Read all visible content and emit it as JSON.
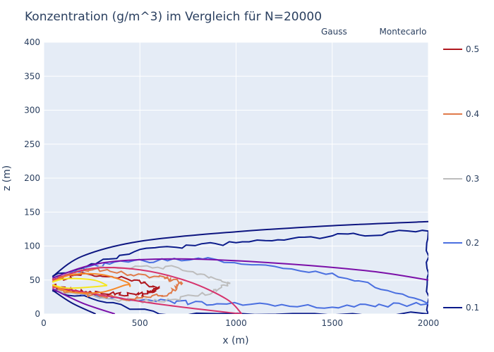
{
  "chart_data": {
    "type": "contour",
    "title": "Konzentration (g/m^3) im Vergleich für N=20000",
    "xlabel": "x (m)",
    "ylabel": "z (m)",
    "xlim": [
      0,
      2000
    ],
    "ylim": [
      0,
      400
    ],
    "xticks": [
      0,
      500,
      1000,
      1500,
      2000
    ],
    "yticks": [
      0,
      50,
      100,
      150,
      200,
      250,
      300,
      350,
      400
    ],
    "grid": true,
    "legend": {
      "placement": "top-right",
      "entries": [
        {
          "name": "Gauss",
          "colors": [
            "#5a2ca0",
            "#c1115a",
            "#f5e61e"
          ]
        },
        {
          "name": "Montecarlo",
          "colors": [
            "#3a56d8",
            "#8f8fb0",
            "#d03020"
          ]
        }
      ]
    },
    "levels": [
      {
        "value": "0.5",
        "color": "#b0171e"
      },
      {
        "value": "0.4",
        "color": "#e07b4a"
      },
      {
        "value": "0.3",
        "color": "#bdbdbd"
      },
      {
        "value": "0.2",
        "color": "#4a6fe0"
      },
      {
        "value": "0.1",
        "color": "#0a1a8a"
      }
    ],
    "series": [
      {
        "name": "Gauss",
        "level": 0.1,
        "color": "#0d1580",
        "source_z": 45,
        "outline": [
          [
            45,
            55
          ],
          [
            200,
            85
          ],
          [
            500,
            107
          ],
          [
            1000,
            121
          ],
          [
            1500,
            130
          ],
          [
            2000,
            136
          ]
        ],
        "floor_x": 270
      },
      {
        "name": "Gauss",
        "level": 0.2,
        "color": "#7b0fa8",
        "source_z": 45,
        "outline": [
          [
            45,
            53
          ],
          [
            300,
            75
          ],
          [
            700,
            81
          ],
          [
            1200,
            75
          ],
          [
            1700,
            63
          ],
          [
            2000,
            50
          ]
        ],
        "floor_x": 370
      },
      {
        "name": "Gauss",
        "level": 0.3,
        "color": "#d6336c",
        "source_z": 45,
        "outline": [
          [
            45,
            50
          ],
          [
            250,
            67
          ],
          [
            500,
            65
          ],
          [
            750,
            48
          ],
          [
            950,
            22
          ],
          [
            1030,
            0
          ]
        ],
        "floor_x": 1030
      },
      {
        "name": "Gauss",
        "level": 0.4,
        "color": "#f58a2a",
        "source_z": 45,
        "outline": [
          [
            45,
            48
          ],
          [
            150,
            58
          ],
          [
            300,
            58
          ],
          [
            430,
            47
          ],
          [
            450,
            40
          ]
        ],
        "floor_x": null
      },
      {
        "name": "Gauss",
        "level": 0.5,
        "color": "#f5e61e",
        "source_z": 45,
        "outline": [
          [
            45,
            47
          ],
          [
            120,
            52
          ],
          [
            260,
            50
          ],
          [
            330,
            42
          ]
        ],
        "floor_x": null
      },
      {
        "name": "Montecarlo",
        "level": 0.5,
        "color": "#b0171e",
        "source_z": 45,
        "outline": [
          [
            45,
            47
          ],
          [
            200,
            60
          ],
          [
            470,
            50
          ],
          [
            600,
            38
          ],
          [
            560,
            32
          ],
          [
            480,
            28
          ],
          [
            300,
            30
          ],
          [
            150,
            35
          ],
          [
            45,
            42
          ]
        ]
      },
      {
        "name": "Montecarlo",
        "level": 0.4,
        "color": "#e07b4a",
        "source_z": 45,
        "outline": [
          [
            45,
            50
          ],
          [
            250,
            65
          ],
          [
            600,
            55
          ],
          [
            720,
            45
          ],
          [
            650,
            30
          ],
          [
            450,
            22
          ],
          [
            250,
            28
          ],
          [
            45,
            38
          ]
        ]
      },
      {
        "name": "Montecarlo",
        "level": 0.3,
        "color": "#bdbdbd",
        "source_z": 45,
        "outline": [
          [
            45,
            52
          ],
          [
            300,
            70
          ],
          [
            700,
            68
          ],
          [
            970,
            45
          ],
          [
            880,
            32
          ],
          [
            600,
            18
          ],
          [
            350,
            22
          ],
          [
            45,
            36
          ]
        ]
      },
      {
        "name": "Montecarlo",
        "level": 0.2,
        "color": "#4a6fe0",
        "source_z": 45,
        "outline": [
          [
            45,
            54
          ],
          [
            400,
            78
          ],
          [
            900,
            80
          ],
          [
            1500,
            60
          ],
          [
            2000,
            15
          ],
          [
            1500,
            10
          ],
          [
            900,
            15
          ],
          [
            500,
            20
          ],
          [
            45,
            35
          ]
        ]
      },
      {
        "name": "Montecarlo",
        "level": 0.1,
        "color": "#0a1a8a",
        "source_z": 45,
        "outline": [
          [
            45,
            55
          ],
          [
            500,
            95
          ],
          [
            1000,
            105
          ],
          [
            1500,
            115
          ],
          [
            2000,
            122
          ],
          [
            2000,
            0
          ],
          [
            600,
            0
          ],
          [
            45,
            34
          ]
        ]
      }
    ]
  }
}
